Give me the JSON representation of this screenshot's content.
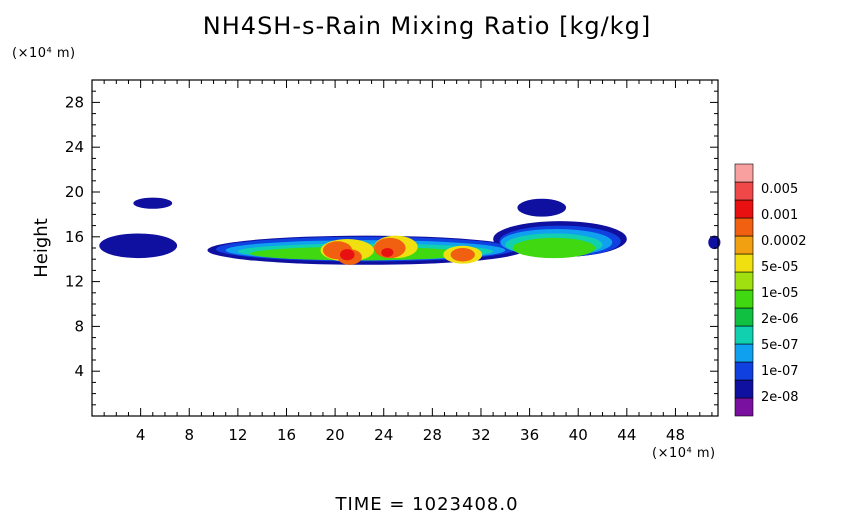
{
  "chart_data": {
    "type": "heatmap",
    "title": "NH4SH-s-Rain Mixing Ratio [kg/kg]",
    "ylabel": "Height",
    "xlabel": "",
    "x_unit": "(×10⁴ m)",
    "y_unit": "(×10⁴ m)",
    "footer": "TIME = 1023408.0",
    "xlim": [
      0,
      51.5
    ],
    "ylim": [
      0,
      30
    ],
    "xticks": [
      4,
      8,
      12,
      16,
      20,
      24,
      28,
      32,
      36,
      40,
      44,
      48
    ],
    "yticks": [
      4,
      8,
      12,
      16,
      20,
      24,
      28
    ],
    "colorbar": {
      "labels": [
        "0.005",
        "0.001",
        "0.0002",
        "5e-05",
        "1e-05",
        "2e-06",
        "5e-07",
        "1e-07",
        "2e-08"
      ],
      "colors": [
        "#7a10a0",
        "#1010a0",
        "#1040e0",
        "#10a0f0",
        "#10d0b0",
        "#10c040",
        "#40d810",
        "#a0e010",
        "#f0e010",
        "#f0a010",
        "#f06010",
        "#e81010",
        "#f04848",
        "#f8a0a0"
      ]
    },
    "regions": [
      {
        "level": 1,
        "x": 3.8,
        "y": 15.2,
        "rx": 3.2,
        "ry": 1.1
      },
      {
        "level": 1,
        "x": 5.0,
        "y": 19.0,
        "rx": 1.6,
        "ry": 0.5
      },
      {
        "level": 1,
        "x": 22.5,
        "y": 14.8,
        "rx": 13.0,
        "ry": 1.3
      },
      {
        "level": 1,
        "x": 38.5,
        "y": 15.8,
        "rx": 5.5,
        "ry": 1.6
      },
      {
        "level": 1,
        "x": 37.0,
        "y": 18.6,
        "rx": 2.0,
        "ry": 0.8
      },
      {
        "level": 1,
        "x": 51.2,
        "y": 15.5,
        "rx": 0.5,
        "ry": 0.6
      },
      {
        "level": 2,
        "x": 22.5,
        "y": 14.9,
        "rx": 12.3,
        "ry": 1.1
      },
      {
        "level": 2,
        "x": 38.5,
        "y": 15.6,
        "rx": 5.0,
        "ry": 1.4
      },
      {
        "level": 3,
        "x": 22.5,
        "y": 14.8,
        "rx": 11.5,
        "ry": 0.9
      },
      {
        "level": 3,
        "x": 38.2,
        "y": 15.5,
        "rx": 4.6,
        "ry": 1.2
      },
      {
        "level": 4,
        "x": 22.5,
        "y": 14.7,
        "rx": 10.5,
        "ry": 0.7
      },
      {
        "level": 4,
        "x": 38.0,
        "y": 15.3,
        "rx": 4.0,
        "ry": 1.0
      },
      {
        "level": 6,
        "x": 22.0,
        "y": 14.5,
        "rx": 9.0,
        "ry": 0.6
      },
      {
        "level": 6,
        "x": 38.0,
        "y": 15.0,
        "rx": 3.4,
        "ry": 0.9
      },
      {
        "level": 8,
        "x": 21.0,
        "y": 14.8,
        "rx": 2.2,
        "ry": 1.0
      },
      {
        "level": 8,
        "x": 25.0,
        "y": 15.1,
        "rx": 1.8,
        "ry": 1.0
      },
      {
        "level": 8,
        "x": 30.5,
        "y": 14.4,
        "rx": 1.6,
        "ry": 0.8
      },
      {
        "level": 10,
        "x": 20.2,
        "y": 14.8,
        "rx": 1.2,
        "ry": 0.8
      },
      {
        "level": 10,
        "x": 21.2,
        "y": 14.2,
        "rx": 1.0,
        "ry": 0.7
      },
      {
        "level": 10,
        "x": 24.5,
        "y": 15.0,
        "rx": 1.3,
        "ry": 0.9
      },
      {
        "level": 10,
        "x": 30.5,
        "y": 14.4,
        "rx": 1.0,
        "ry": 0.6
      },
      {
        "level": 11,
        "x": 21.0,
        "y": 14.4,
        "rx": 0.6,
        "ry": 0.5
      },
      {
        "level": 11,
        "x": 24.3,
        "y": 14.6,
        "rx": 0.5,
        "ry": 0.4
      }
    ]
  }
}
